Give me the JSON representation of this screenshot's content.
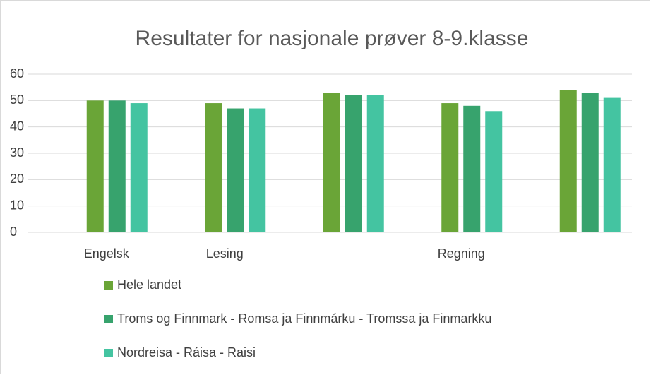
{
  "chart_data": {
    "type": "bar",
    "title": "Resultater for nasjonale prøver 8-9.klasse",
    "categories": [
      "Engelsk",
      "Lesing",
      null,
      "Regning",
      null
    ],
    "series": [
      {
        "name": "Hele landet",
        "color": "#6aa537",
        "values": [
          50,
          49,
          53,
          49,
          54
        ]
      },
      {
        "name": "Troms og Finnmark - Romsa ja Finnmárku - Tromssa ja Finmarkku",
        "color": "#37a36d",
        "values": [
          50,
          47,
          52,
          48,
          53
        ]
      },
      {
        "name": "Nordreisa - Ráisa - Raisi",
        "color": "#44c4a1",
        "values": [
          49,
          47,
          52,
          46,
          51
        ]
      }
    ],
    "ylim": [
      0,
      60
    ],
    "yticks": [
      0,
      10,
      20,
      30,
      40,
      50,
      60
    ],
    "grid": true,
    "legend": "bottom"
  }
}
